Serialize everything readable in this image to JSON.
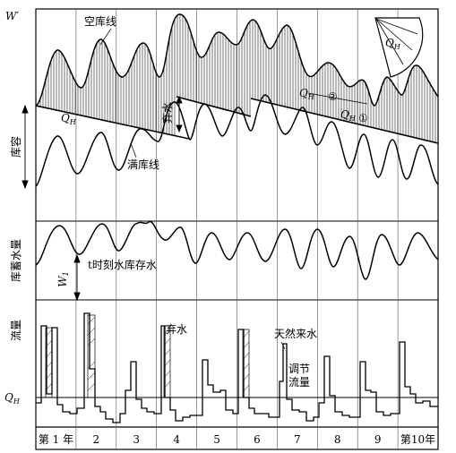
{
  "figure": {
    "y_axis_top_label": "W′",
    "capacity_label": "库容",
    "storage_label": "库蓄水量",
    "flow_label": "流量",
    "qh_axis_label_main": "Q",
    "qh_axis_label_sub": "H",
    "w1_label_main": "W",
    "w1_label_sub": "1"
  },
  "annotations": {
    "empty_line": "空库线",
    "full_line": "满库线",
    "spill_upper": "弃水",
    "spill_lower": "弃水",
    "qh_main": "Q",
    "qh_sub": "H",
    "qh_line2_main": "Q",
    "qh_line2_sub": "H",
    "qh_line1_main": "Q",
    "qh_line1_sub": "H",
    "circle2": "②",
    "circle1": "①",
    "fan_qh_main": "Q",
    "fan_qh_sub": "H",
    "storage_time": "t时刻水库存水",
    "natural_inflow": "天然来水",
    "regulated_flow_line1": "调节",
    "regulated_flow_line2": "流量"
  },
  "years": [
    "第 1 年",
    "2",
    "3",
    "4",
    "5",
    "6",
    "7",
    "8",
    "9",
    "第10年"
  ]
}
